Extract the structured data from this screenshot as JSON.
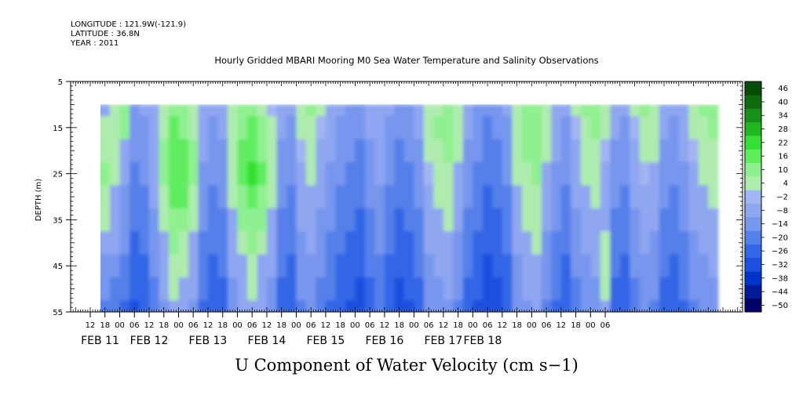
{
  "header": {
    "longitude": "LONGITUDE : 121.9W(-121.9)",
    "latitude": "LATITUDE : 36.8N",
    "year": "YEAR : 2011"
  },
  "chart_data": {
    "type": "heatmap",
    "title": "Hourly Gridded MBARI Mooring M0 Sea Water Temperature and Salinity Observations",
    "xlabel": "U Component of Water Velocity (cm s−1)",
    "ylabel": "DEPTH (m)",
    "ylim": [
      55,
      5
    ],
    "y_inverted": true,
    "y_ticks": [
      5,
      15,
      25,
      35,
      45,
      55
    ],
    "x_hour_range": [
      -20,
      254
    ],
    "x_hour_ticks": [
      {
        "h": -12,
        "label": "12"
      },
      {
        "h": -6,
        "label": "18"
      },
      {
        "h": 0,
        "label": "00"
      },
      {
        "h": 6,
        "label": "06"
      },
      {
        "h": 12,
        "label": "12"
      },
      {
        "h": 18,
        "label": "18"
      },
      {
        "h": 24,
        "label": "00"
      },
      {
        "h": 30,
        "label": "06"
      },
      {
        "h": 36,
        "label": "12"
      },
      {
        "h": 42,
        "label": "18"
      },
      {
        "h": 48,
        "label": "00"
      },
      {
        "h": 54,
        "label": "06"
      },
      {
        "h": 60,
        "label": "12"
      },
      {
        "h": 66,
        "label": "18"
      },
      {
        "h": 72,
        "label": "00"
      },
      {
        "h": 78,
        "label": "06"
      },
      {
        "h": 84,
        "label": "12"
      },
      {
        "h": 90,
        "label": "18"
      },
      {
        "h": 96,
        "label": "00"
      },
      {
        "h": 102,
        "label": "06"
      },
      {
        "h": 108,
        "label": "12"
      },
      {
        "h": 114,
        "label": "18"
      },
      {
        "h": 120,
        "label": "00"
      },
      {
        "h": 126,
        "label": "06"
      },
      {
        "h": 132,
        "label": "12"
      },
      {
        "h": 138,
        "label": "18"
      },
      {
        "h": 144,
        "label": "00"
      },
      {
        "h": 150,
        "label": "06"
      },
      {
        "h": 156,
        "label": "12"
      },
      {
        "h": 162,
        "label": "18"
      },
      {
        "h": 168,
        "label": "00"
      },
      {
        "h": 174,
        "label": "06"
      },
      {
        "h": 180,
        "label": "12"
      },
      {
        "h": 186,
        "label": "18"
      },
      {
        "h": 192,
        "label": "00"
      },
      {
        "h": 198,
        "label": "06"
      }
    ],
    "x_date_labels": [
      {
        "h": -8,
        "label": "FEB 11"
      },
      {
        "h": 12,
        "label": "FEB 12"
      },
      {
        "h": 36,
        "label": "FEB 13"
      },
      {
        "h": 60,
        "label": "FEB 14"
      },
      {
        "h": 84,
        "label": "FEB 15"
      },
      {
        "h": 108,
        "label": "FEB 16"
      },
      {
        "h": 132,
        "label": "FEB 17"
      },
      {
        "h": 148,
        "label": "FEB 18"
      }
    ],
    "data_x_range": [
      -10,
      243
    ],
    "data_depth_range": [
      10,
      55
    ],
    "colorbar": {
      "levels": [
        -50,
        -44,
        -38,
        -32,
        -26,
        -20,
        -14,
        -8,
        -2,
        4,
        10,
        16,
        22,
        28,
        34,
        40,
        46
      ],
      "labels": [
        "-50",
        "-44",
        "-38",
        "-32",
        "-26",
        "-20",
        "-14",
        "-8",
        "-2",
        "4",
        "10",
        "16",
        "22",
        "28",
        "34",
        "40",
        "46"
      ],
      "colors": [
        "#000066",
        "#001a99",
        "#0033cc",
        "#1a4fe0",
        "#3366e6",
        "#5580ea",
        "#7796ee",
        "#8fa6f0",
        "#a3b4f2",
        "#aeecae",
        "#8ff08f",
        "#5fec5f",
        "#33e033",
        "#22b822",
        "#189018",
        "#0e6b0e",
        "#074d07"
      ]
    },
    "columns_hour": [
      -10,
      -6,
      -2,
      2,
      6,
      10,
      14,
      18,
      22,
      26,
      30,
      34,
      38,
      42,
      46,
      50,
      54,
      58,
      62,
      66,
      70,
      74,
      78,
      82,
      86,
      90,
      94,
      98,
      102,
      106,
      110,
      114,
      118,
      122,
      126,
      130,
      134,
      138,
      142,
      146,
      150,
      154,
      158,
      162,
      166,
      170,
      174,
      178,
      182,
      186,
      190,
      194,
      198,
      202,
      206,
      210,
      214,
      218,
      222,
      226,
      230,
      234,
      238,
      242
    ],
    "rows_depth": [
      10,
      15,
      20,
      25,
      30,
      35,
      40,
      45,
      50,
      55
    ],
    "values": [
      [
        -4,
        -6,
        6,
        10,
        -10,
        -8,
        -4,
        6,
        12,
        10,
        4,
        -4,
        -8,
        -6,
        4,
        12,
        14,
        8,
        2,
        -6,
        -8,
        4,
        10,
        6,
        -4,
        -8,
        -10,
        -12,
        -6,
        -4,
        -8,
        -12,
        -10,
        -6,
        4,
        8,
        10,
        6,
        -6,
        -10,
        -14,
        -12,
        -8,
        6,
        12,
        10,
        4,
        -4,
        -8,
        4,
        10,
        12,
        6,
        -6,
        -8,
        4,
        10,
        8,
        -6,
        -8,
        -4,
        6,
        10,
        12
      ],
      [
        6,
        4,
        8,
        12,
        -12,
        -10,
        -6,
        8,
        16,
        14,
        8,
        -6,
        -10,
        -8,
        6,
        14,
        18,
        12,
        4,
        -8,
        -10,
        4,
        8,
        2,
        -6,
        -10,
        -12,
        -14,
        -8,
        -4,
        -10,
        -14,
        -12,
        -8,
        6,
        10,
        12,
        8,
        -8,
        -12,
        -16,
        -14,
        -10,
        8,
        12,
        14,
        6,
        -6,
        -10,
        2,
        8,
        10,
        4,
        -8,
        -10,
        2,
        6,
        6,
        -8,
        -10,
        -6,
        4,
        8,
        10
      ],
      [
        10,
        8,
        6,
        -4,
        -14,
        -12,
        -4,
        10,
        18,
        16,
        10,
        -8,
        -12,
        -10,
        8,
        16,
        20,
        14,
        4,
        -10,
        -12,
        2,
        6,
        -4,
        -8,
        -12,
        -14,
        -16,
        -10,
        -6,
        -12,
        -16,
        -14,
        -10,
        4,
        8,
        10,
        6,
        -10,
        -14,
        -18,
        -16,
        -12,
        6,
        10,
        12,
        4,
        -8,
        -12,
        -4,
        6,
        8,
        2,
        -10,
        -12,
        -4,
        4,
        4,
        -10,
        -12,
        -8,
        2,
        6,
        8
      ],
      [
        12,
        10,
        4,
        -8,
        -16,
        -14,
        -6,
        10,
        20,
        18,
        10,
        -10,
        -14,
        -12,
        6,
        16,
        22,
        16,
        6,
        -12,
        -14,
        -4,
        4,
        -6,
        -10,
        -14,
        -16,
        -18,
        -12,
        -8,
        -14,
        -18,
        -16,
        -12,
        2,
        6,
        8,
        -4,
        -12,
        -16,
        -20,
        -18,
        -14,
        4,
        8,
        10,
        -4,
        -10,
        -14,
        -6,
        4,
        6,
        -4,
        -12,
        -14,
        -6,
        2,
        -4,
        -12,
        -14,
        -10,
        -4,
        4,
        6
      ],
      [
        10,
        8,
        -4,
        -10,
        -18,
        -16,
        -8,
        8,
        18,
        16,
        8,
        -12,
        -16,
        -14,
        4,
        14,
        18,
        14,
        4,
        -14,
        -16,
        -6,
        -4,
        -8,
        -12,
        -16,
        -18,
        -20,
        -14,
        -10,
        -16,
        -20,
        -18,
        -14,
        -4,
        4,
        6,
        -6,
        -14,
        -18,
        -22,
        -20,
        -16,
        -4,
        6,
        8,
        -6,
        -12,
        -16,
        -8,
        -4,
        4,
        -6,
        -14,
        -16,
        -8,
        -4,
        -6,
        -14,
        -16,
        -12,
        -6,
        -4,
        4
      ],
      [
        8,
        4,
        -6,
        -12,
        -20,
        -18,
        -10,
        6,
        14,
        12,
        4,
        -14,
        -18,
        -16,
        -4,
        10,
        14,
        10,
        -4,
        -16,
        -18,
        -8,
        -6,
        -10,
        -14,
        -18,
        -20,
        -22,
        -16,
        -12,
        -18,
        -22,
        -20,
        -16,
        -6,
        -4,
        4,
        -8,
        -16,
        -20,
        -24,
        -22,
        -18,
        -6,
        4,
        6,
        -8,
        -14,
        -18,
        -10,
        -6,
        -4,
        -8,
        -16,
        -18,
        -10,
        -6,
        -8,
        -16,
        -18,
        -14,
        -8,
        -6,
        -4
      ],
      [
        -4,
        -6,
        -8,
        -14,
        -22,
        -20,
        -12,
        -4,
        10,
        8,
        -4,
        -16,
        -20,
        -18,
        -6,
        6,
        10,
        6,
        -6,
        -18,
        -20,
        -10,
        -8,
        -12,
        -16,
        -20,
        -22,
        -24,
        -18,
        -14,
        -20,
        -24,
        -22,
        -18,
        -8,
        -6,
        -4,
        -10,
        -18,
        -22,
        -26,
        -24,
        -20,
        -8,
        -4,
        4,
        -10,
        -16,
        -20,
        -12,
        -8,
        -6,
        4,
        -18,
        -20,
        -12,
        -8,
        -10,
        -18,
        -20,
        -16,
        -10,
        -8,
        -6
      ],
      [
        -8,
        -10,
        -12,
        -16,
        -24,
        -22,
        -14,
        -6,
        6,
        4,
        -6,
        -18,
        -22,
        -20,
        -8,
        -4,
        6,
        -4,
        -8,
        -20,
        -22,
        -12,
        -10,
        -14,
        -18,
        -22,
        -24,
        -26,
        -20,
        -16,
        -22,
        -26,
        -24,
        -20,
        -10,
        -8,
        -6,
        -12,
        -20,
        -24,
        -28,
        -26,
        -22,
        -10,
        -6,
        -4,
        -12,
        -18,
        -22,
        -14,
        -10,
        -8,
        6,
        -20,
        -22,
        -14,
        -10,
        -12,
        -20,
        -22,
        -18,
        -12,
        -10,
        -8
      ],
      [
        -12,
        -14,
        -16,
        -18,
        -26,
        -24,
        -16,
        -8,
        4,
        -4,
        -8,
        -20,
        -24,
        -22,
        -10,
        -6,
        4,
        -6,
        -10,
        -22,
        -24,
        -14,
        -12,
        -16,
        -20,
        -24,
        -26,
        -28,
        -22,
        -18,
        -24,
        -28,
        -26,
        -22,
        -12,
        -10,
        -8,
        -14,
        -22,
        -26,
        -30,
        -28,
        -24,
        -12,
        -8,
        -6,
        -14,
        -20,
        -24,
        -16,
        -12,
        -10,
        4,
        -22,
        -24,
        -16,
        -12,
        -14,
        -22,
        -24,
        -20,
        -14,
        -12,
        -10
      ],
      [
        -16,
        -18,
        -20,
        -22,
        -28,
        -26,
        -18,
        -10,
        -4,
        -6,
        -10,
        -22,
        -26,
        -24,
        -12,
        -8,
        -4,
        -8,
        -12,
        -24,
        -26,
        -16,
        -14,
        -18,
        -22,
        -26,
        -28,
        -30,
        -24,
        -20,
        -26,
        -30,
        -28,
        -24,
        -14,
        -12,
        -10,
        -16,
        -24,
        -28,
        -32,
        -30,
        -26,
        -14,
        -10,
        -8,
        -16,
        -22,
        -26,
        -18,
        -14,
        -12,
        -4,
        -24,
        -26,
        -18,
        -14,
        -16,
        -24,
        -26,
        -22,
        -16,
        -14,
        -12
      ]
    ]
  }
}
